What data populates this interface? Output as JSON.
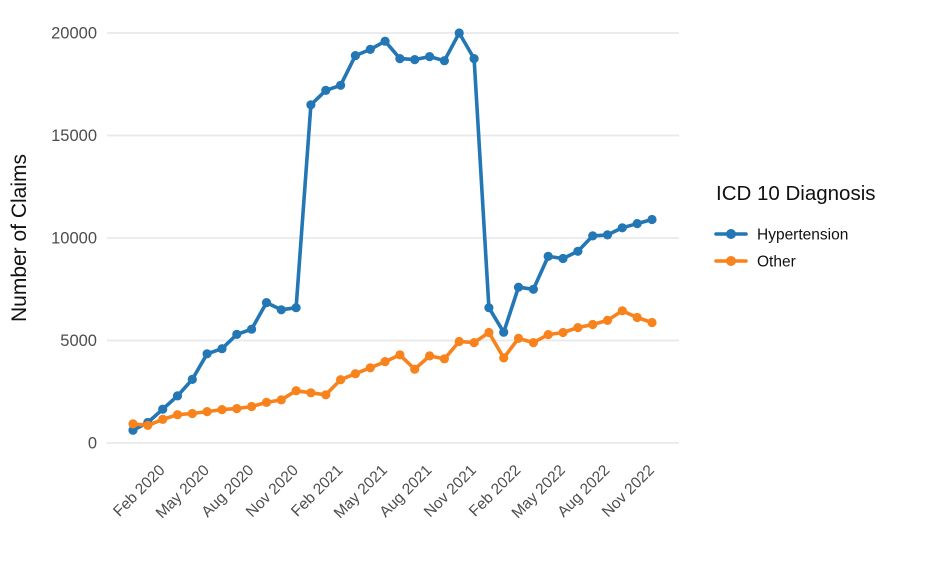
{
  "page": {
    "background": "#ffffff"
  },
  "chart_data": {
    "type": "line",
    "title": "",
    "xlabel": "",
    "ylabel": "Number of Claims",
    "ylim": [
      0,
      20000
    ],
    "yticks": [
      0,
      5000,
      10000,
      15000,
      20000
    ],
    "ytick_labels": [
      "0",
      "5000",
      "10000",
      "15000",
      "20000"
    ],
    "grid": "horizontal-only",
    "gridline_color": "#e9e9e9",
    "tick_label_color": "#4d4d4d",
    "text_color": "#111111",
    "legend": {
      "title": "ICD 10 Diagnosis",
      "position": "right"
    },
    "x": [
      "Dec 2019",
      "Jan 2020",
      "Feb 2020",
      "Mar 2020",
      "Apr 2020",
      "May 2020",
      "Jun 2020",
      "Jul 2020",
      "Aug 2020",
      "Sep 2020",
      "Oct 2020",
      "Nov 2020",
      "Dec 2020",
      "Jan 2021",
      "Feb 2021",
      "Mar 2021",
      "Apr 2021",
      "May 2021",
      "Jun 2021",
      "Jul 2021",
      "Aug 2021",
      "Sep 2021",
      "Oct 2021",
      "Nov 2021",
      "Dec 2021",
      "Jan 2022",
      "Feb 2022",
      "Mar 2022",
      "Apr 2022",
      "May 2022",
      "Jun 2022",
      "Jul 2022",
      "Aug 2022",
      "Sep 2022",
      "Oct 2022",
      "Nov 2022"
    ],
    "x_tick_labels": [
      "Feb 2020",
      "May 2020",
      "Aug 2020",
      "Nov 2020",
      "Feb 2021",
      "May 2021",
      "Aug 2021",
      "Nov 2021",
      "Feb 2022",
      "May 2022",
      "Aug 2022",
      "Nov 2022"
    ],
    "x_tick_indices": [
      2,
      5,
      8,
      11,
      14,
      17,
      20,
      23,
      26,
      29,
      32,
      35
    ],
    "series": [
      {
        "name": "Hypertension",
        "color": "#2277b4",
        "values": [
          620,
          1000,
          1650,
          2300,
          3100,
          4350,
          4600,
          5300,
          5550,
          6850,
          6500,
          6600,
          16500,
          17200,
          17450,
          18900,
          19200,
          19600,
          18750,
          18700,
          18850,
          18650,
          20000,
          18750,
          6600,
          5400,
          7600,
          7500,
          9100,
          9000,
          9350,
          10100,
          10150,
          10500,
          10700,
          10900
        ]
      },
      {
        "name": "Other",
        "color": "#f8821c",
        "values": [
          930,
          860,
          1150,
          1380,
          1440,
          1530,
          1630,
          1680,
          1780,
          1980,
          2100,
          2550,
          2450,
          2350,
          3090,
          3380,
          3670,
          3970,
          4300,
          3600,
          4250,
          4100,
          4950,
          4900,
          5390,
          4150,
          5100,
          4900,
          5290,
          5390,
          5630,
          5780,
          5980,
          6450,
          6120,
          5880
        ]
      }
    ]
  }
}
